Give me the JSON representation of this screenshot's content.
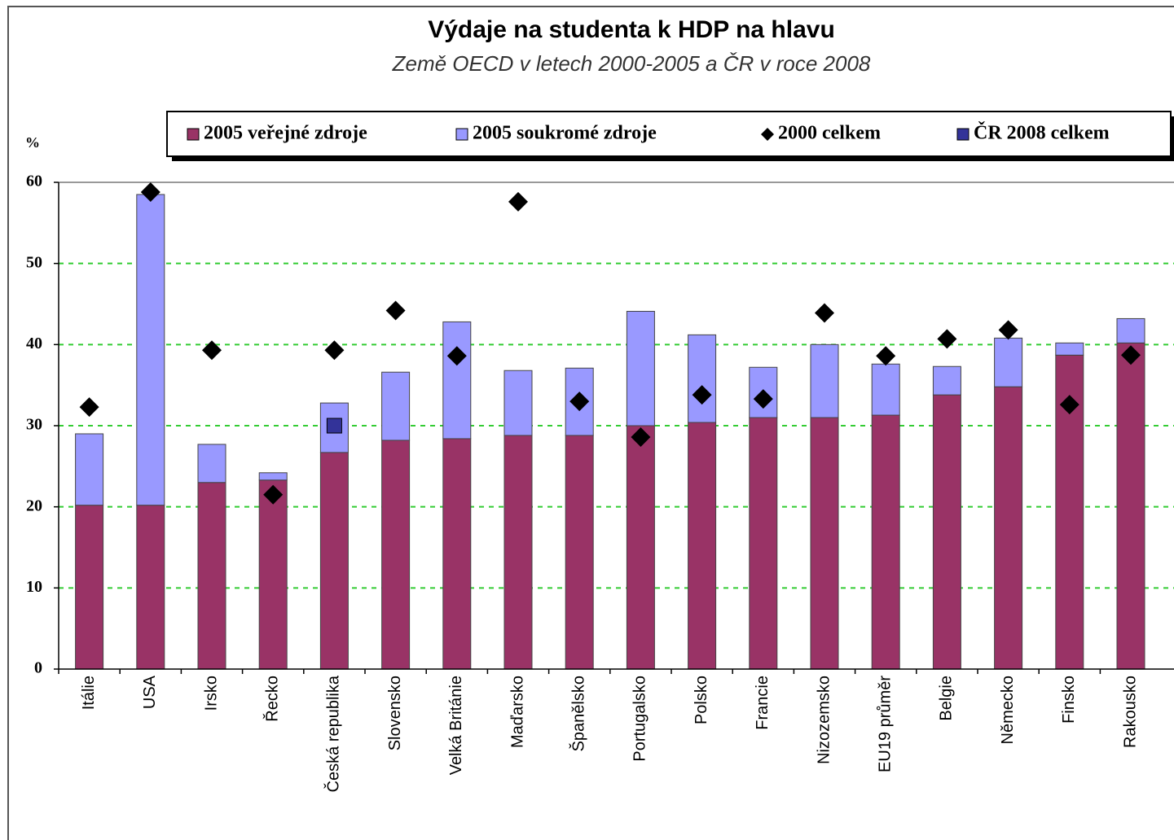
{
  "chart_data": {
    "type": "bar",
    "title": "Výdaje na studenta k HDP na hlavu",
    "subtitle": "Země OECD v letech 2000-2005 a ČR v roce 2008",
    "y_label": "%",
    "categories": [
      "Itálie",
      "USA",
      "Irsko",
      "Řecko",
      "Česká republika",
      "Slovensko",
      "Velká Británie",
      "Maďarsko",
      "Španělsko",
      "Portugalsko",
      "Polsko",
      "Francie",
      "Nizozemsko",
      "EU19 průměr",
      "Belgie",
      "Německo",
      "Finsko",
      "Rakousko"
    ],
    "series": [
      {
        "name": "2005 veřejné zdroje",
        "color": "#993366",
        "kind": "bar",
        "values": [
          20.2,
          20.2,
          23.0,
          23.3,
          26.7,
          28.2,
          28.4,
          28.8,
          28.8,
          30.0,
          30.4,
          31.0,
          31.0,
          31.3,
          33.8,
          34.8,
          38.7,
          40.2
        ]
      },
      {
        "name": "2005 soukromé zdroje",
        "color": "#9999ff",
        "kind": "bar",
        "values": [
          8.8,
          38.3,
          4.7,
          0.9,
          6.1,
          8.4,
          14.4,
          8.0,
          8.3,
          14.1,
          10.8,
          6.2,
          9.0,
          6.3,
          3.5,
          6.0,
          1.5,
          3.0
        ]
      },
      {
        "name": "2000 celkem",
        "color": "#000000",
        "kind": "diamond",
        "values": [
          32.3,
          58.8,
          39.3,
          21.5,
          39.3,
          44.2,
          38.6,
          57.6,
          33.0,
          28.6,
          33.8,
          33.3,
          43.9,
          38.6,
          40.7,
          41.8,
          32.6,
          38.7
        ]
      },
      {
        "name": "ČR 2008 celkem",
        "color": "#333399",
        "kind": "square",
        "values": [
          null,
          null,
          null,
          null,
          30.0,
          null,
          null,
          null,
          null,
          null,
          null,
          null,
          null,
          null,
          null,
          null,
          null,
          null
        ]
      }
    ],
    "ylim": [
      0,
      60
    ],
    "yticks": [
      0,
      10,
      20,
      30,
      40,
      50,
      60
    ],
    "grid": true,
    "legend": "top"
  }
}
